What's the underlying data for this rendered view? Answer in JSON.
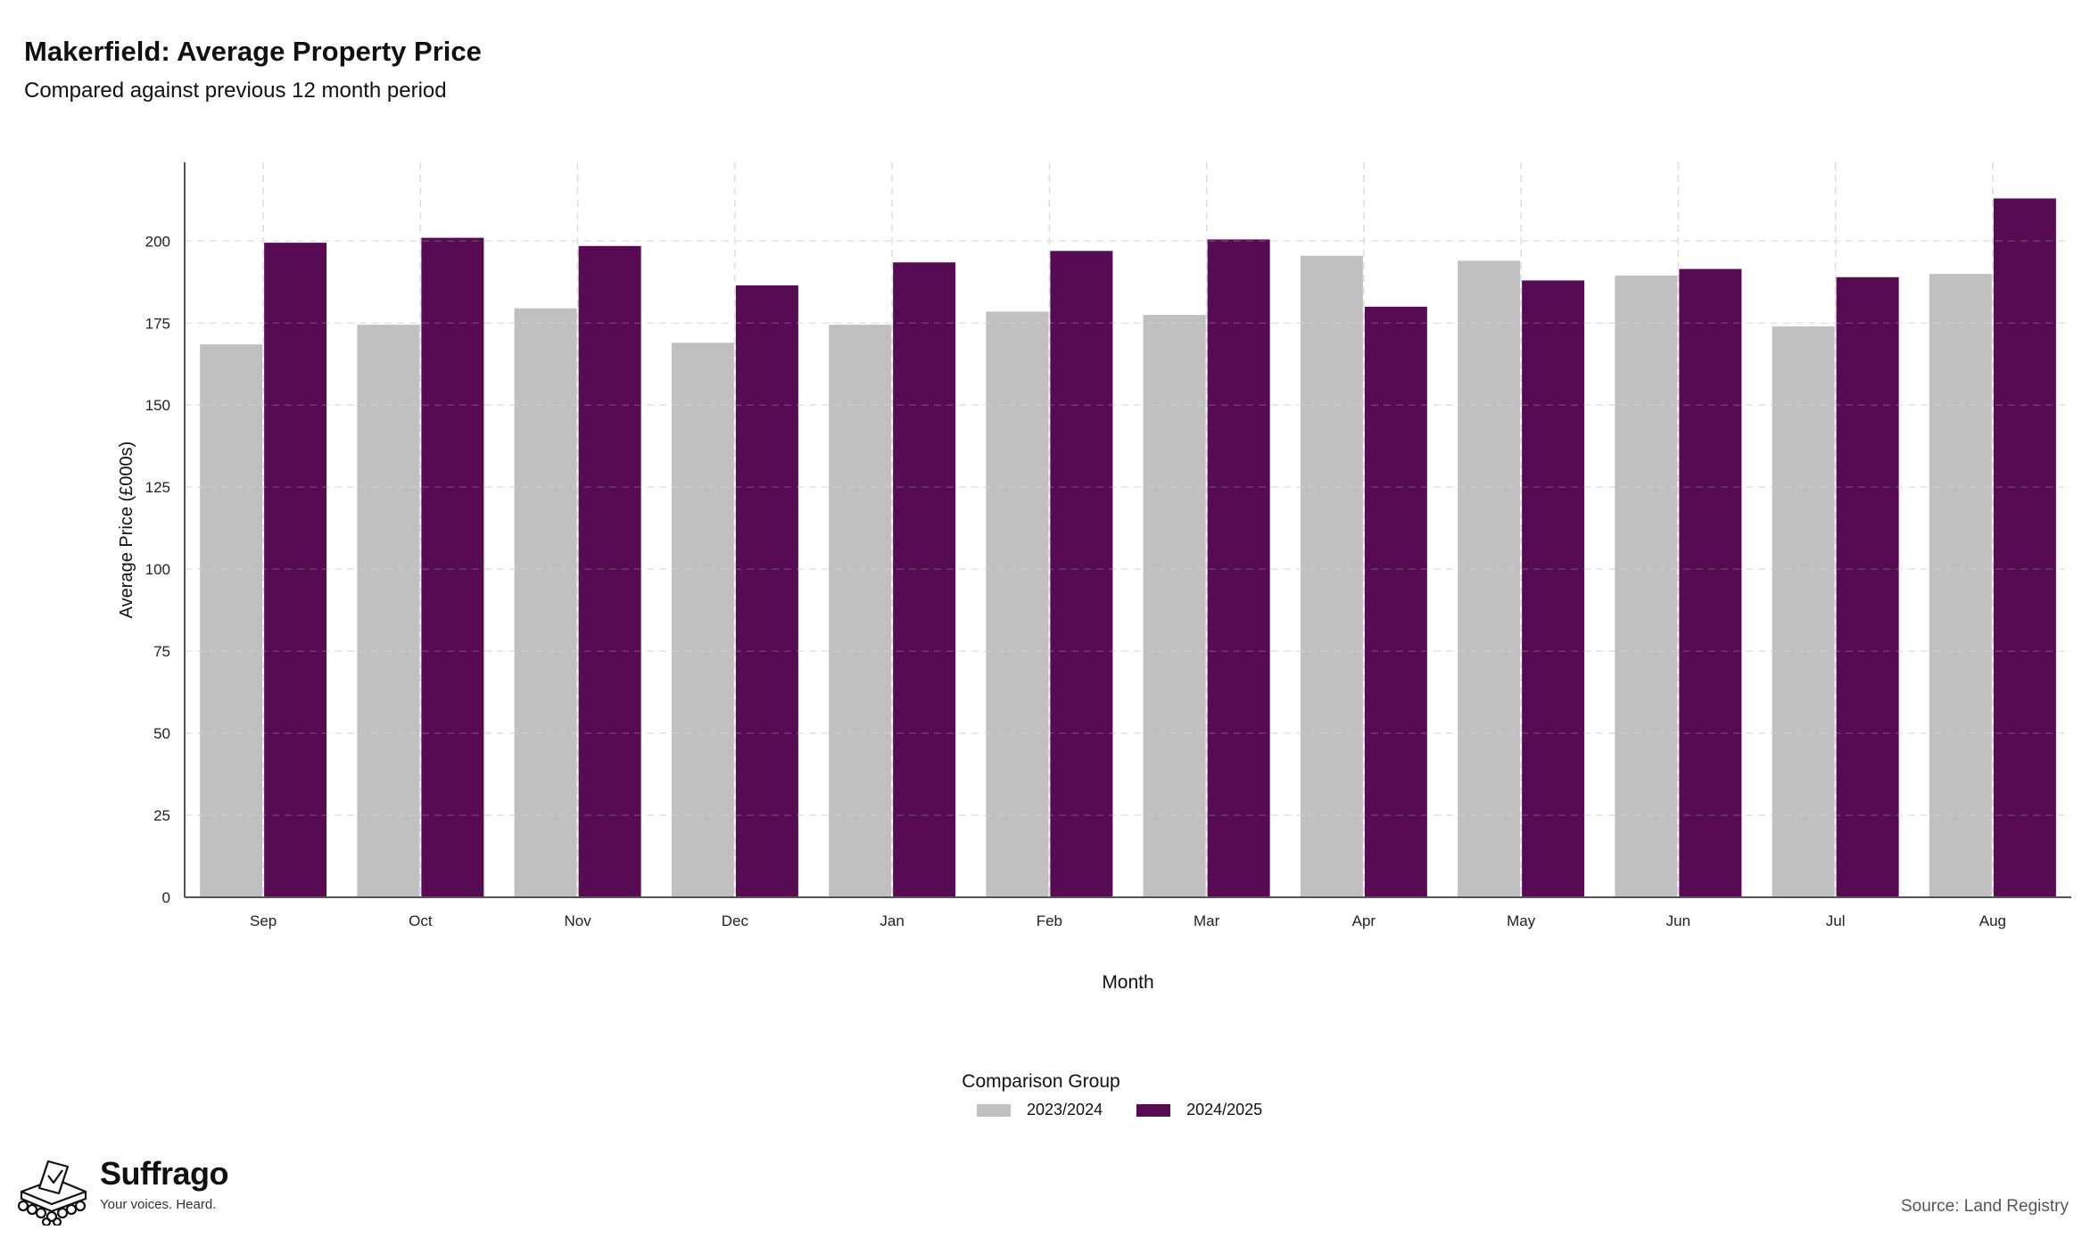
{
  "header": {
    "title": "Makerfield: Average Property Price",
    "subtitle": "Compared against previous 12 month period"
  },
  "colors": {
    "series_prev": "#c0c0c0",
    "series_curr": "#560b52",
    "grid": "#dddddd",
    "axis": "#555555"
  },
  "legend": {
    "title": "Comparison Group",
    "items": [
      "2023/2024",
      "2024/2025"
    ]
  },
  "brand": {
    "name": "Suffrago",
    "tagline": "Your voices. Heard.",
    "logo_icon": "ballot-box-icon"
  },
  "footer": {
    "source": "Source: Land Registry"
  },
  "chart_data": {
    "type": "bar",
    "xlabel": "Month",
    "ylabel": "Average Price (£000s)",
    "categories": [
      "Sep",
      "Oct",
      "Nov",
      "Dec",
      "Jan",
      "Feb",
      "Mar",
      "Apr",
      "May",
      "Jun",
      "Jul",
      "Aug"
    ],
    "series": [
      {
        "name": "2023/2024",
        "values": [
          168.5,
          174.5,
          179.5,
          169,
          174.5,
          178.5,
          177.5,
          195.5,
          194,
          189.5,
          174,
          190
        ]
      },
      {
        "name": "2024/2025",
        "values": [
          199.5,
          201,
          198.5,
          186.5,
          193.5,
          197,
          200.5,
          180,
          188,
          191.5,
          189,
          213
        ]
      }
    ],
    "yticks": [
      0,
      25,
      50,
      75,
      100,
      125,
      150,
      175,
      200
    ],
    "ylim": [
      0,
      224
    ],
    "grid": true,
    "legend_position": "bottom"
  }
}
